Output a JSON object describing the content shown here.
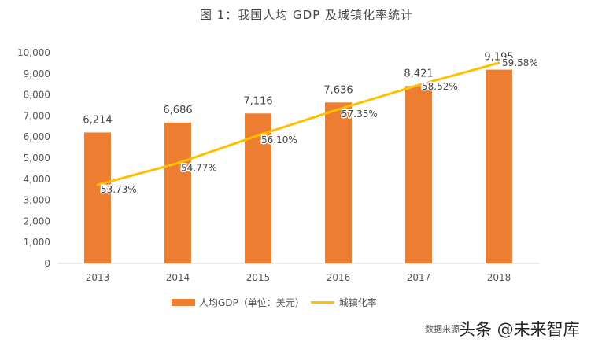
{
  "title": "图 1：我国人均 GDP 及城镇化率统计",
  "chart_data": {
    "type": "bar+line",
    "categories": [
      "2013",
      "2014",
      "2015",
      "2016",
      "2017",
      "2018"
    ],
    "series": [
      {
        "name": "人均GDP（单位：美元）",
        "type": "bar",
        "values": [
          6214,
          6686,
          7116,
          7636,
          8421,
          9195
        ],
        "labels": [
          "6,214",
          "6,686",
          "7,116",
          "7,636",
          "8,421",
          "9,195"
        ],
        "color": "#ED7D31"
      },
      {
        "name": "城镇化率",
        "type": "line",
        "values": [
          53.73,
          54.77,
          56.1,
          57.35,
          58.52,
          59.58
        ],
        "labels": [
          "53.73%",
          "54.77%",
          "56.10%",
          "57.35%",
          "58.52%",
          "59.58%"
        ],
        "color": "#FFC000"
      }
    ],
    "ylim": [
      0,
      10000
    ],
    "yticks": [
      "0",
      "1,000",
      "2,000",
      "3,000",
      "4,000",
      "5,000",
      "6,000",
      "7,000",
      "8,000",
      "9,000",
      "10,000"
    ],
    "grid": false,
    "legend": "bottom"
  },
  "source": "数据来源",
  "watermark": "头条 @未来智库"
}
